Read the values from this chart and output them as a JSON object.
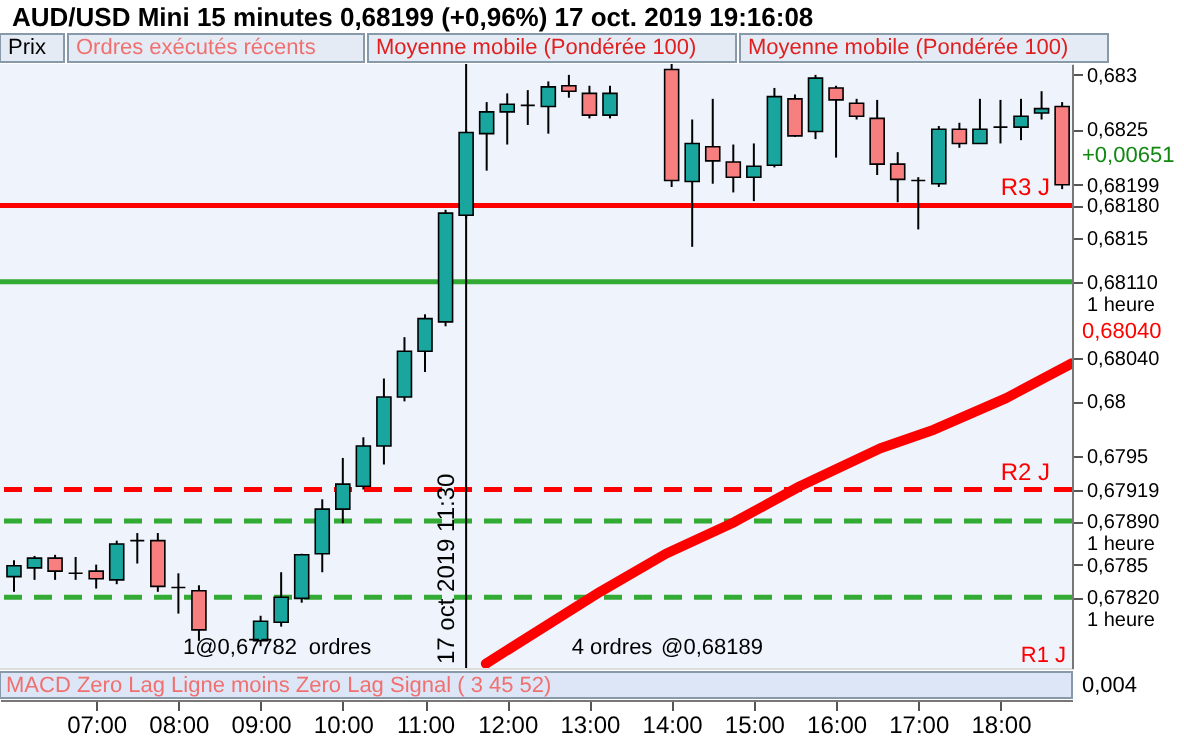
{
  "chart_data": {
    "type": "candlestick",
    "title": "AUD/USD Mini    15 minutes    0,68199 (+0,96%)    17 oct. 2019 19:16:08",
    "x": [
      6,
      6.25,
      6.5,
      6.75,
      7,
      7.25,
      7.5,
      7.75,
      8,
      8.25,
      9,
      9.25,
      9.5,
      9.75,
      10,
      10.25,
      10.5,
      10.75,
      11,
      11.25,
      11.5,
      11.75,
      12,
      12.25,
      12.5,
      12.75,
      13,
      13.25,
      14,
      14.25,
      14.5,
      14.75,
      15,
      15.25,
      15.5,
      15.75,
      16,
      16.25,
      16.5,
      16.75,
      17,
      17.25,
      17.5,
      17.75,
      18,
      18.25,
      18.5,
      18.75
    ],
    "ohlc": [
      [
        0.67839,
        0.67854,
        0.67825,
        0.67849
      ],
      [
        0.67847,
        0.67858,
        0.67836,
        0.67856
      ],
      [
        0.67856,
        0.67859,
        0.67836,
        0.67844
      ],
      [
        0.67842,
        0.67857,
        0.67836,
        0.67842
      ],
      [
        0.67844,
        0.6785,
        0.67828,
        0.67837
      ],
      [
        0.67836,
        0.67872,
        0.67832,
        0.67869
      ],
      [
        0.67872,
        0.67879,
        0.67851,
        0.67872
      ],
      [
        0.67872,
        0.67879,
        0.67825,
        0.6783
      ],
      [
        0.67829,
        0.67842,
        0.67805,
        0.67829
      ],
      [
        0.67826,
        0.67831,
        0.6778,
        0.6779
      ],
      [
        0.6778,
        0.67803,
        0.67775,
        0.67798
      ],
      [
        0.67797,
        0.67843,
        0.67793,
        0.6782
      ],
      [
        0.67819,
        0.6786,
        0.67815,
        0.67859
      ],
      [
        0.6786,
        0.6791,
        0.67843,
        0.67901
      ],
      [
        0.67901,
        0.67948,
        0.67888,
        0.67924
      ],
      [
        0.67922,
        0.67967,
        0.67919,
        0.67959
      ],
      [
        0.67959,
        0.68021,
        0.67942,
        0.68004
      ],
      [
        0.68004,
        0.68059,
        0.68,
        0.68046
      ],
      [
        0.68046,
        0.6808,
        0.68027,
        0.68076
      ],
      [
        0.68073,
        0.68176,
        0.68069,
        0.68173
      ],
      [
        0.68171,
        0.6825,
        0.68168,
        0.68247
      ],
      [
        0.68246,
        0.68275,
        0.68212,
        0.68266
      ],
      [
        0.68266,
        0.68283,
        0.68236,
        0.68273
      ],
      [
        0.68272,
        0.68286,
        0.68254,
        0.68272
      ],
      [
        0.68271,
        0.68294,
        0.68246,
        0.68289
      ],
      [
        0.6829,
        0.683,
        0.68279,
        0.68285
      ],
      [
        0.68283,
        0.6829,
        0.6826,
        0.68263
      ],
      [
        0.68263,
        0.6829,
        0.6826,
        0.68283
      ],
      [
        0.68305,
        0.6831,
        0.68197,
        0.68203
      ],
      [
        0.68202,
        0.68259,
        0.68142,
        0.68237
      ],
      [
        0.68234,
        0.68278,
        0.682,
        0.68221
      ],
      [
        0.6822,
        0.68236,
        0.68192,
        0.68206
      ],
      [
        0.68206,
        0.68237,
        0.68184,
        0.68216
      ],
      [
        0.68217,
        0.68288,
        0.68215,
        0.6828
      ],
      [
        0.68278,
        0.68282,
        0.68243,
        0.68244
      ],
      [
        0.68248,
        0.683,
        0.68241,
        0.68297
      ],
      [
        0.68288,
        0.6829,
        0.68224,
        0.68277
      ],
      [
        0.68274,
        0.68278,
        0.68259,
        0.68262
      ],
      [
        0.6826,
        0.68277,
        0.68208,
        0.68218
      ],
      [
        0.68218,
        0.68229,
        0.68183,
        0.68204
      ],
      [
        0.68203,
        0.68206,
        0.68158,
        0.68203
      ],
      [
        0.682,
        0.68253,
        0.68197,
        0.6825
      ],
      [
        0.6825,
        0.68256,
        0.68233,
        0.68237
      ],
      [
        0.68237,
        0.68278,
        0.68237,
        0.6825
      ],
      [
        0.68252,
        0.68277,
        0.68237,
        0.68252
      ],
      [
        0.68252,
        0.68278,
        0.6824,
        0.68262
      ],
      [
        0.68265,
        0.68285,
        0.68259,
        0.68269
      ],
      [
        0.68271,
        0.68275,
        0.68195,
        0.68199
      ]
    ],
    "colors": [
      "#18a69e",
      "#18a69e",
      "#f77f7f",
      "#000000",
      "#f77f7f",
      "#18a69e",
      "#000000",
      "#f77f7f",
      "#000000",
      "#f77f7f",
      "#18a69e",
      "#18a69e",
      "#18a69e",
      "#18a69e",
      "#18a69e",
      "#18a69e",
      "#18a69e",
      "#18a69e",
      "#18a69e",
      "#18a69e",
      "#18a69e",
      "#18a69e",
      "#18a69e",
      "#000000",
      "#18a69e",
      "#f77f7f",
      "#f77f7f",
      "#18a69e",
      "#f77f7f",
      "#18a69e",
      "#f77f7f",
      "#f77f7f",
      "#18a69e",
      "#18a69e",
      "#f77f7f",
      "#18a69e",
      "#f77f7f",
      "#f77f7f",
      "#f77f7f",
      "#f77f7f",
      "#000000",
      "#18a69e",
      "#f77f7f",
      "#18a69e",
      "#000000",
      "#18a69e",
      "#18a69e",
      "#f77f7f"
    ],
    "series": [
      {
        "type": "line",
        "color": "#ff0000",
        "x": [
          11.74,
          13.13,
          13.93,
          14.76,
          15.56,
          16.54,
          17.19,
          18.07,
          18.87
        ],
        "values": [
          0.67759,
          0.67825,
          0.6786,
          0.67889,
          0.67922,
          0.67957,
          0.67974,
          0.68003,
          0.68035
        ]
      }
    ],
    "ref_lines": [
      {
        "axis": "y",
        "value": 0.6818,
        "label": "R3 J",
        "color": "#ff0000"
      },
      {
        "axis": "y",
        "value": 0.6811,
        "color": "#33aa33"
      },
      {
        "axis": "y",
        "value": 0.67919,
        "label": "R2 J",
        "color": "#ff0000",
        "line_style": "dashed"
      },
      {
        "axis": "y",
        "value": 0.6789,
        "color": "#33aa33",
        "line_style": "dashed"
      },
      {
        "axis": "y",
        "value": 0.6782,
        "color": "#33aa33",
        "line_style": "dashed"
      },
      {
        "axis": "x",
        "value": 11.5,
        "label": "17 oct 2019 11:30",
        "color": "#000000"
      }
    ],
    "xlim": [
      5.83,
      18.87
    ],
    "xticks": [
      {
        "value": 7,
        "label": "07:00"
      },
      {
        "value": 8,
        "label": "08:00"
      },
      {
        "value": 9,
        "label": "09:00"
      },
      {
        "value": 10,
        "label": "10:00"
      },
      {
        "value": 11,
        "label": "11:00"
      },
      {
        "value": 12,
        "label": "12:00"
      },
      {
        "value": 13,
        "label": "13:00"
      },
      {
        "value": 14,
        "label": "14:00"
      },
      {
        "value": 15,
        "label": "15:00"
      },
      {
        "value": 16,
        "label": "16:00"
      },
      {
        "value": 17,
        "label": "17:00"
      },
      {
        "value": 18,
        "label": "18:00"
      }
    ],
    "ylim": [
      0.67755,
      0.6831
    ],
    "yticks": [
      {
        "value": 0.683,
        "label": "0,683"
      },
      {
        "value": 0.6825,
        "label": "0,6825"
      },
      {
        "value": 0.68199,
        "label": "0,68199"
      },
      {
        "value": 0.6818,
        "label": "0,68180"
      },
      {
        "value": 0.6815,
        "label": "0,6815"
      },
      {
        "value": 0.6811,
        "label": "0,68110\n1 heure"
      },
      {
        "value": 0.6804,
        "label": "0,68040"
      },
      {
        "value": 0.68,
        "label": "0,68"
      },
      {
        "value": 0.6795,
        "label": "0,6795"
      },
      {
        "value": 0.67919,
        "label": "0,67919"
      },
      {
        "value": 0.6789,
        "label": "0,67890\n1 heure"
      },
      {
        "value": 0.6785,
        "label": "0,6785"
      },
      {
        "value": 0.6782,
        "label": "0,67820\n1 heure"
      }
    ],
    "annotations": [
      "Prix",
      "Ordres exécutés récents",
      "Moyenne mobile (Pondérée 100)",
      "Moyenne mobile (Pondérée 100)",
      "R1 J",
      "MACD Zero Lag Ligne moins Zero Lag Signal ( 3 45 52)",
      "0,004",
      "+0,00651",
      "0,68040",
      "1@0,67782",
      "ordres",
      "4 ordres",
      "@0,68189"
    ]
  }
}
